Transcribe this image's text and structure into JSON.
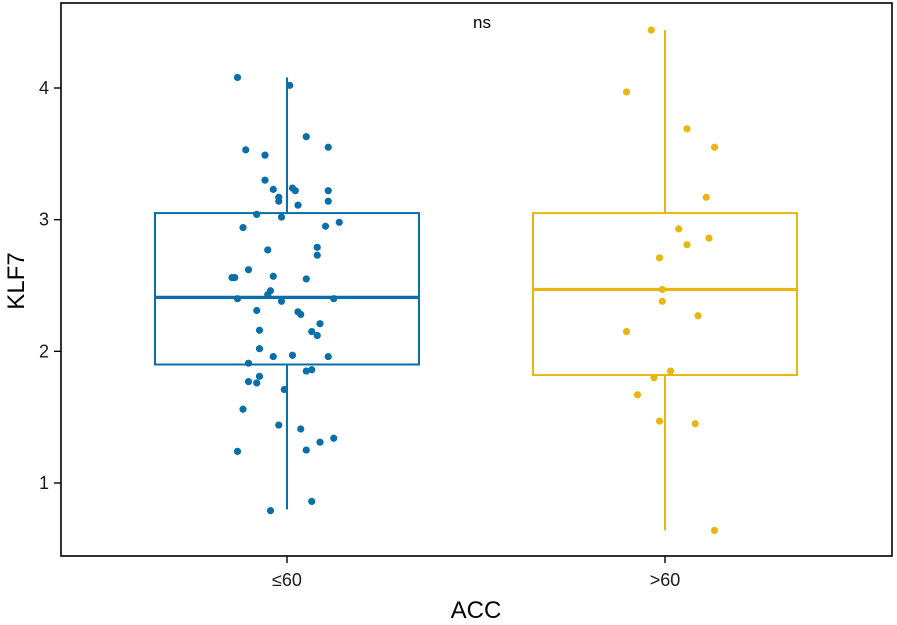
{
  "chart_data": {
    "type": "box",
    "xlabel": "ACC",
    "ylabel": "KLF7",
    "annotation": "ns",
    "y_ticks": [
      1,
      2,
      3,
      4
    ],
    "ylim": [
      0.45,
      4.6
    ],
    "grid": false,
    "legend": "none",
    "groups": [
      {
        "name": "≤60",
        "color": "#0a6fa8",
        "box": {
          "q1": 1.9,
          "median": 2.41,
          "q3": 3.05,
          "whisker_low": 0.8,
          "whisker_high": 4.08
        },
        "points": [
          [
            -0.18,
            4.08
          ],
          [
            0.01,
            4.02
          ],
          [
            0.07,
            3.63
          ],
          [
            -0.15,
            3.53
          ],
          [
            0.15,
            3.55
          ],
          [
            -0.08,
            3.49
          ],
          [
            -0.08,
            3.3
          ],
          [
            -0.05,
            3.23
          ],
          [
            0.02,
            3.24
          ],
          [
            0.03,
            3.22
          ],
          [
            0.15,
            3.22
          ],
          [
            -0.03,
            3.17
          ],
          [
            -0.03,
            3.14
          ],
          [
            0.15,
            3.14
          ],
          [
            0.04,
            3.11
          ],
          [
            -0.11,
            3.04
          ],
          [
            -0.02,
            3.02
          ],
          [
            0.19,
            2.98
          ],
          [
            0.14,
            2.95
          ],
          [
            -0.16,
            2.94
          ],
          [
            -0.07,
            2.77
          ],
          [
            0.11,
            2.79
          ],
          [
            0.11,
            2.73
          ],
          [
            -0.14,
            2.62
          ],
          [
            -0.19,
            2.56
          ],
          [
            -0.2,
            2.56
          ],
          [
            -0.05,
            2.57
          ],
          [
            0.07,
            2.55
          ],
          [
            -0.06,
            2.46
          ],
          [
            -0.07,
            2.43
          ],
          [
            -0.18,
            2.4
          ],
          [
            0.17,
            2.4
          ],
          [
            -0.02,
            2.38
          ],
          [
            0.04,
            2.3
          ],
          [
            0.05,
            2.28
          ],
          [
            -0.11,
            2.31
          ],
          [
            0.12,
            2.21
          ],
          [
            -0.1,
            2.16
          ],
          [
            0.09,
            2.15
          ],
          [
            0.11,
            2.12
          ],
          [
            -0.1,
            2.02
          ],
          [
            -0.05,
            1.96
          ],
          [
            0.02,
            1.97
          ],
          [
            0.15,
            1.96
          ],
          [
            -0.14,
            1.91
          ],
          [
            0.09,
            1.86
          ],
          [
            0.07,
            1.85
          ],
          [
            -0.1,
            1.81
          ],
          [
            -0.14,
            1.77
          ],
          [
            -0.11,
            1.76
          ],
          [
            -0.01,
            1.71
          ],
          [
            -0.16,
            1.56
          ],
          [
            -0.03,
            1.44
          ],
          [
            0.05,
            1.41
          ],
          [
            0.17,
            1.34
          ],
          [
            0.12,
            1.31
          ],
          [
            0.07,
            1.25
          ],
          [
            -0.18,
            1.24
          ],
          [
            0.09,
            0.86
          ],
          [
            -0.06,
            0.79
          ]
        ]
      },
      {
        "name": ">60",
        "color": "#e8b70f",
        "box": {
          "q1": 1.82,
          "median": 2.47,
          "q3": 3.05,
          "whisker_low": 0.64,
          "whisker_high": 4.44
        },
        "points": [
          [
            -0.05,
            4.44
          ],
          [
            -0.14,
            3.97
          ],
          [
            0.08,
            3.69
          ],
          [
            0.18,
            3.55
          ],
          [
            0.15,
            3.17
          ],
          [
            0.05,
            2.93
          ],
          [
            0.08,
            2.81
          ],
          [
            0.16,
            2.86
          ],
          [
            -0.02,
            2.71
          ],
          [
            -0.01,
            2.47
          ],
          [
            -0.01,
            2.38
          ],
          [
            0.12,
            2.27
          ],
          [
            -0.14,
            2.15
          ],
          [
            0.02,
            1.85
          ],
          [
            -0.04,
            1.8
          ],
          [
            -0.1,
            1.67
          ],
          [
            -0.02,
            1.47
          ],
          [
            0.11,
            1.45
          ],
          [
            0.18,
            0.64
          ]
        ]
      }
    ]
  }
}
